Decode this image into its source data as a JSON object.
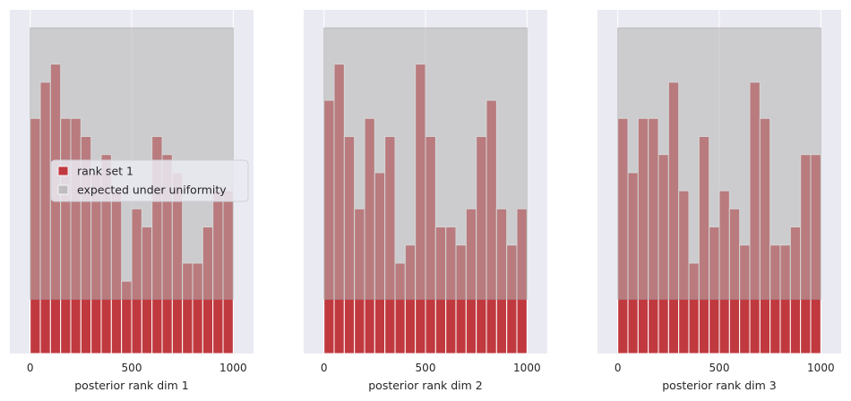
{
  "colors": {
    "axes_bg": "#EAEAF2",
    "grid": "#FFFFFF",
    "rank_bar": "#C0393F",
    "uniform_band": "#B3B3B3",
    "bar_edge": "#FFFFFF",
    "text": "#262626"
  },
  "chart_data": [
    {
      "type": "bar",
      "xlabel": "posterior rank dim 1",
      "xlim": [
        -100,
        1100
      ],
      "ylim": [
        0,
        19
      ],
      "xticks": [
        0,
        500,
        1000
      ],
      "xtick_labels": [
        "0",
        "500",
        "1000"
      ],
      "grid": true,
      "legend": "center-left",
      "bin_edges": [
        0,
        50,
        100,
        150,
        200,
        250,
        300,
        350,
        400,
        450,
        500,
        550,
        600,
        650,
        700,
        750,
        800,
        850,
        900,
        950,
        1000
      ],
      "series": [
        {
          "name": "rank set 1",
          "values": [
            13,
            15,
            16,
            13,
            13,
            12,
            10,
            11,
            9,
            4,
            8,
            7,
            12,
            11,
            10,
            5,
            5,
            7,
            9,
            9
          ]
        }
      ],
      "uniform_band": {
        "name": "expected under uniformity",
        "x": [
          0,
          1000
        ],
        "y": [
          3,
          18
        ]
      }
    },
    {
      "type": "bar",
      "xlabel": "posterior rank dim 2",
      "xlim": [
        -100,
        1100
      ],
      "ylim": [
        0,
        19
      ],
      "xticks": [
        0,
        500,
        1000
      ],
      "xtick_labels": [
        "0",
        "500",
        "1000"
      ],
      "grid": true,
      "bin_edges": [
        0,
        50,
        100,
        150,
        200,
        250,
        300,
        350,
        400,
        450,
        500,
        550,
        600,
        650,
        700,
        750,
        800,
        850,
        900,
        950,
        1000
      ],
      "series": [
        {
          "name": "rank set 1",
          "values": [
            14,
            16,
            12,
            8,
            13,
            10,
            12,
            5,
            6,
            16,
            12,
            7,
            7,
            6,
            8,
            12,
            14,
            8,
            6,
            8
          ]
        }
      ],
      "uniform_band": {
        "name": "expected under uniformity",
        "x": [
          0,
          1000
        ],
        "y": [
          3,
          18
        ]
      }
    },
    {
      "type": "bar",
      "xlabel": "posterior rank dim 3",
      "xlim": [
        -100,
        1100
      ],
      "ylim": [
        0,
        19
      ],
      "xticks": [
        0,
        500,
        1000
      ],
      "xtick_labels": [
        "0",
        "500",
        "1000"
      ],
      "grid": true,
      "bin_edges": [
        0,
        50,
        100,
        150,
        200,
        250,
        300,
        350,
        400,
        450,
        500,
        550,
        600,
        650,
        700,
        750,
        800,
        850,
        900,
        950,
        1000
      ],
      "series": [
        {
          "name": "rank set 1",
          "values": [
            13,
            10,
            13,
            13,
            11,
            15,
            9,
            5,
            12,
            7,
            9,
            8,
            6,
            15,
            13,
            6,
            6,
            7,
            11,
            11
          ]
        }
      ],
      "uniform_band": {
        "name": "expected under uniformity",
        "x": [
          0,
          1000
        ],
        "y": [
          3,
          18
        ]
      }
    }
  ],
  "legend": {
    "items": [
      {
        "label": "rank set 1",
        "swatch": "rank_bar"
      },
      {
        "label": "expected under uniformity",
        "swatch": "uniform_band"
      }
    ]
  }
}
